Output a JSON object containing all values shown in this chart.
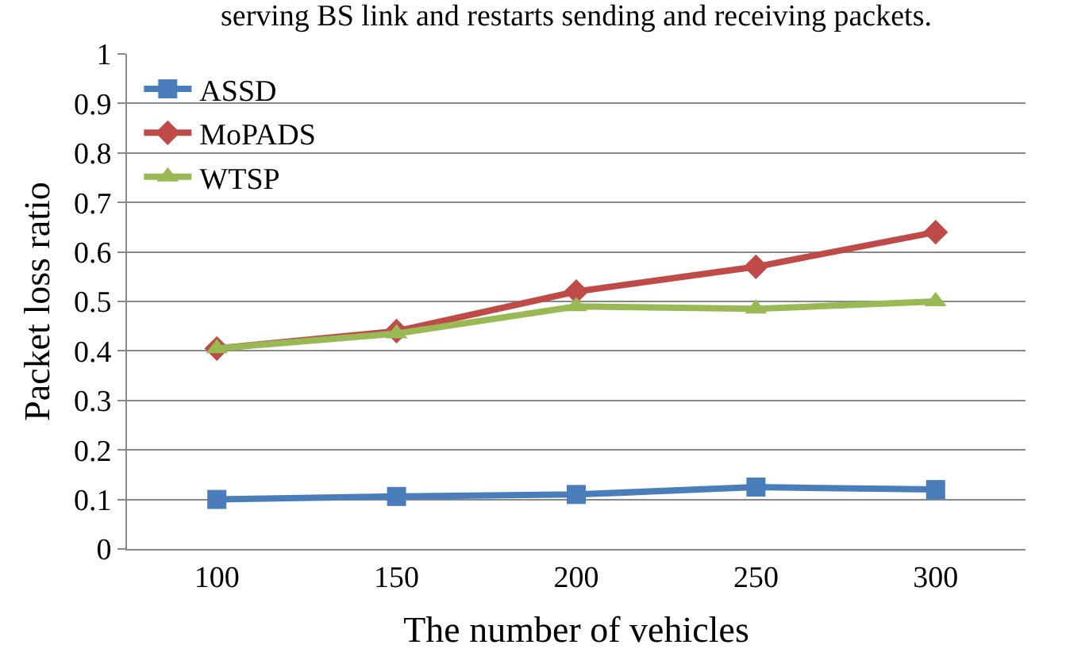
{
  "chart_data": {
    "type": "line",
    "categories": [
      "100",
      "150",
      "200",
      "250",
      "300"
    ],
    "series": [
      {
        "name": "ASSD",
        "color": "#4a7ebb",
        "marker": "square",
        "values": [
          0.1,
          0.106,
          0.11,
          0.125,
          0.12
        ]
      },
      {
        "name": "MoPADS",
        "color": "#be4b48",
        "marker": "diamond",
        "values": [
          0.405,
          0.44,
          0.52,
          0.57,
          0.64
        ]
      },
      {
        "name": "WTSP",
        "color": "#98b954",
        "marker": "triangle",
        "values": [
          0.405,
          0.435,
          0.49,
          0.485,
          0.5
        ]
      }
    ],
    "xlabel": "The number of vehicles",
    "ylabel": "Packet loss ratio",
    "ylim": [
      0,
      1
    ],
    "yticks": [
      0,
      0.1,
      0.2,
      0.3,
      0.4,
      0.5,
      0.6,
      0.7,
      0.8,
      0.9,
      1
    ],
    "grid": "y",
    "legend": "top left",
    "line_style": "solid",
    "annotations": [
      "serving BS link and restarts sending and receiving packets."
    ]
  }
}
